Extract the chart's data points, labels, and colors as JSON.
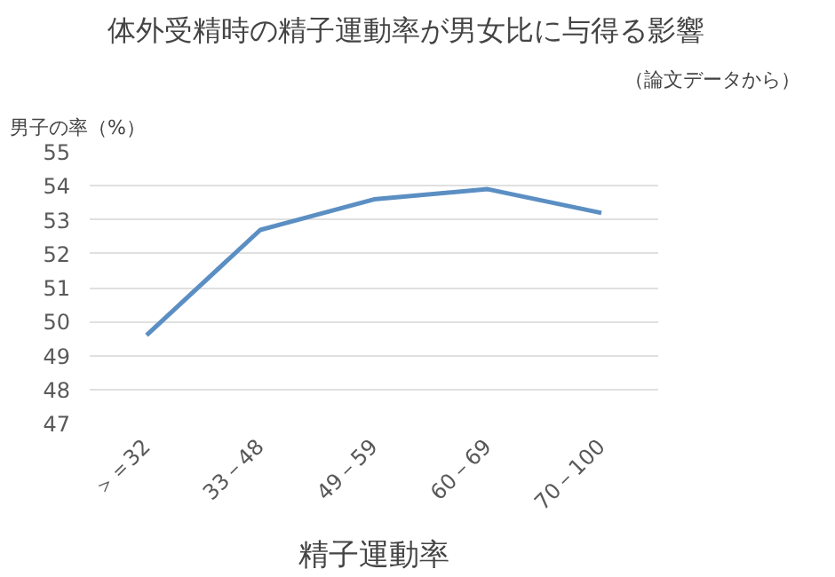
{
  "chart_data": {
    "type": "line",
    "title": "体外受精時の精子運動率が男女比に与得る影響",
    "subtitle": "（論文データから）",
    "xlabel": "精子運動率",
    "ylabel": "男子の率（%）",
    "categories": [
      "＞＝32",
      "33－48",
      "49－59",
      "60－69",
      "70－100"
    ],
    "series": [
      {
        "color": "#5b8fc3",
        "values": [
          49.6,
          52.7,
          53.6,
          53.9,
          53.2
        ]
      }
    ],
    "ylim": [
      47,
      55
    ],
    "yticks": [
      47,
      48,
      49,
      50,
      51,
      52,
      53,
      54,
      55
    ],
    "grid": "y",
    "marker": "none",
    "line_style": "solid"
  }
}
